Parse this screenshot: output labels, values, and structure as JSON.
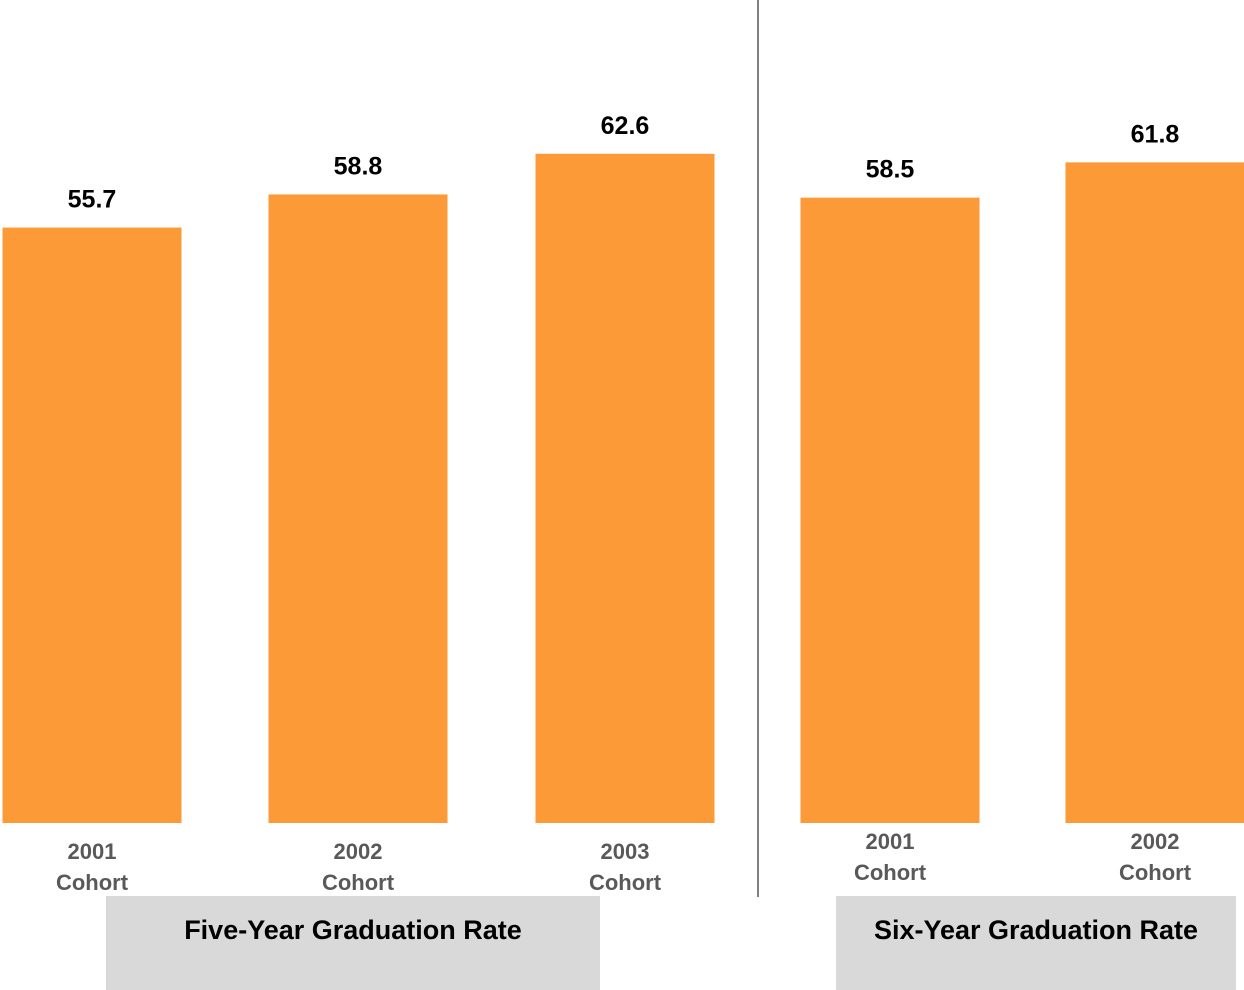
{
  "chart_data": [
    {
      "type": "bar",
      "title": "Five-Year Graduation Rate",
      "categories": [
        [
          "2001",
          "Cohort"
        ],
        [
          "2002",
          "Cohort"
        ],
        [
          "2003",
          "Cohort"
        ]
      ],
      "values": [
        55.7,
        58.8,
        62.6
      ],
      "data_labels": [
        "55.7",
        "58.8",
        "62.6"
      ],
      "bar_color": "#fd9a38",
      "ylim": [
        0,
        70
      ],
      "grid": false
    },
    {
      "type": "bar",
      "title": "Six-Year Graduation Rate",
      "categories": [
        [
          "2001",
          "Cohort"
        ],
        [
          "2002",
          "Cohort"
        ]
      ],
      "values": [
        58.5,
        61.8
      ],
      "data_labels": [
        "58.5",
        "61.8"
      ],
      "bar_color": "#fd9a38",
      "ylim": [
        0,
        70
      ],
      "grid": false
    }
  ]
}
